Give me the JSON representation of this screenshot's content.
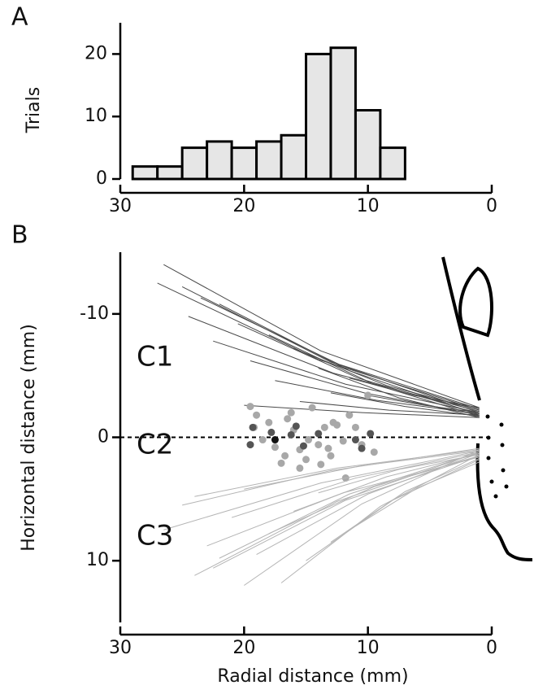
{
  "panel_labels": [
    "A",
    "B"
  ],
  "chart_data": [
    {
      "type": "histogram",
      "ylabel": "Trials",
      "bins": [
        29,
        27,
        25,
        23,
        21,
        19,
        17,
        15,
        13,
        11,
        9,
        7
      ],
      "counts": [
        2,
        2,
        5,
        6,
        5,
        6,
        7,
        20,
        21,
        11,
        5
      ],
      "color": "#e6e6e6",
      "xlim": [
        30,
        0
      ],
      "xticks": [
        30,
        20,
        10,
        0
      ],
      "ylim": [
        0,
        25
      ],
      "yticks": [
        0,
        10,
        20
      ]
    },
    {
      "type": "trajectory",
      "xlabel": "Radial distance (mm)",
      "ylabel": "Horizontal distance (mm)",
      "xlim": [
        30,
        0
      ],
      "xticks": [
        30,
        20,
        10,
        0
      ],
      "ylim": [
        -15,
        15
      ],
      "yticks": [
        -10,
        0,
        10
      ],
      "inverted_y": true,
      "hline": 0,
      "series": [
        {
          "name": "C1",
          "color": "#4a4a4a",
          "lines": [
            {
              "x": [
                26.5,
                13.8,
                1
              ],
              "y": [
                -14.0,
                -7.0,
                -2.4
              ]
            },
            {
              "x": [
                27.0,
                14.0,
                1
              ],
              "y": [
                -12.5,
                -6.3,
                -2.2
              ]
            },
            {
              "x": [
                25.0,
                13.0,
                1
              ],
              "y": [
                -12.2,
                -6.1,
                -2.0
              ]
            },
            {
              "x": [
                23.5,
                12.3,
                1
              ],
              "y": [
                -11.3,
                -5.9,
                -2.3
              ]
            },
            {
              "x": [
                22.0,
                11.5,
                1
              ],
              "y": [
                -10.8,
                -5.4,
                -1.8
              ]
            },
            {
              "x": [
                24.5,
                12.8,
                1
              ],
              "y": [
                -9.8,
                -5.2,
                -2.1
              ]
            },
            {
              "x": [
                20.5,
                10.8,
                1
              ],
              "y": [
                -9.2,
                -4.8,
                -1.9
              ]
            },
            {
              "x": [
                18.0,
                9.5,
                1
              ],
              "y": [
                -8.3,
                -4.3,
                -1.7
              ]
            },
            {
              "x": [
                22.5,
                11.8,
                1
              ],
              "y": [
                -7.8,
                -4.3,
                -2.0
              ]
            },
            {
              "x": [
                16.0,
                8.5,
                1
              ],
              "y": [
                -7.2,
                -4.2,
                -2.2
              ]
            },
            {
              "x": [
                19.5,
                10.3,
                1
              ],
              "y": [
                -6.2,
                -3.6,
                -1.8
              ]
            },
            {
              "x": [
                14.0,
                7.5,
                1
              ],
              "y": [
                -5.6,
                -3.2,
                -1.6
              ]
            },
            {
              "x": [
                17.5,
                9.3,
                1
              ],
              "y": [
                -4.6,
                -3.0,
                -1.9
              ]
            },
            {
              "x": [
                13.0,
                7.0,
                1
              ],
              "y": [
                -3.6,
                -2.5,
                -1.7
              ]
            },
            {
              "x": [
                20.0,
                10.5,
                1
              ],
              "y": [
                -2.6,
                -2.0,
                -1.6
              ]
            },
            {
              "x": [
                10.0,
                5.5,
                1
              ],
              "y": [
                -3.4,
                -2.6,
                -2.0
              ]
            },
            {
              "x": [
                15.5,
                8.3,
                1
              ],
              "y": [
                -2.9,
                -2.2,
                -1.8
              ]
            },
            {
              "x": [
                11.5,
                6.3,
                1
              ],
              "y": [
                -4.8,
                -3.4,
                -2.4
              ]
            }
          ]
        },
        {
          "name": "C2",
          "markers": [
            {
              "color": "#a8a8a8",
              "x": [
                19.5,
                19.0,
                18.0,
                17.5,
                16.5,
                16.0,
                15.5,
                15.0,
                14.5,
                14.0,
                13.5,
                13.0,
                12.5,
                12.0,
                11.5,
                11.0,
                10.5,
                10.0,
                9.5,
                17.0,
                15.5,
                13.8,
                16.2,
                12.8,
                18.5,
                14.8,
                19.2,
                11.8,
                16.7,
                13.2
              ],
              "y": [
                -2.5,
                -1.8,
                -1.2,
                0.8,
                -1.5,
                -0.6,
                1.0,
                1.8,
                -2.4,
                0.6,
                -0.8,
                1.5,
                -1.0,
                0.3,
                -1.8,
                -0.8,
                0.6,
                -3.4,
                1.2,
                2.1,
                2.5,
                2.2,
                -2.0,
                -1.2,
                0.2,
                0.2,
                -0.8,
                3.3,
                1.5,
                0.9
              ]
            },
            {
              "color": "#555555",
              "x": [
                19.5,
                19.3,
                17.8,
                16.2,
                15.8,
                14.0,
                11.0,
                9.8,
                10.5,
                15.2
              ],
              "y": [
                0.6,
                -0.8,
                -0.4,
                -0.2,
                -0.9,
                -0.3,
                0.2,
                -0.3,
                0.9,
                0.7
              ]
            },
            {
              "color": "#111111",
              "x": [
                17.5
              ],
              "y": [
                0.2
              ]
            }
          ]
        },
        {
          "name": "C3",
          "color": "#b4b4b4",
          "lines": [
            {
              "x": [
                24.0,
                12.5,
                1
              ],
              "y": [
                11.2,
                5.2,
                1.2
              ]
            },
            {
              "x": [
                22.5,
                11.8,
                1
              ],
              "y": [
                10.6,
                5.1,
                1.5
              ]
            },
            {
              "x": [
                20.0,
                10.5,
                1
              ],
              "y": [
                12.0,
                5.4,
                1.0
              ]
            },
            {
              "x": [
                17.0,
                9.0,
                1
              ],
              "y": [
                11.8,
                5.6,
                1.4
              ]
            },
            {
              "x": [
                26.5,
                13.8,
                1
              ],
              "y": [
                7.5,
                3.7,
                1.1
              ]
            },
            {
              "x": [
                23.0,
                12.0,
                1
              ],
              "y": [
                8.8,
                4.5,
                1.6
              ]
            },
            {
              "x": [
                19.0,
                10.0,
                1
              ],
              "y": [
                9.5,
                4.6,
                1.3
              ]
            },
            {
              "x": [
                15.0,
                8.0,
                1
              ],
              "y": [
                10.0,
                5.1,
                1.8
              ]
            },
            {
              "x": [
                25.0,
                13.0,
                1
              ],
              "y": [
                5.5,
                2.7,
                0.9
              ]
            },
            {
              "x": [
                21.0,
                11.0,
                1
              ],
              "y": [
                6.5,
                3.3,
                1.2
              ]
            },
            {
              "x": [
                18.0,
                9.5,
                1
              ],
              "y": [
                7.8,
                4.0,
                1.5
              ]
            },
            {
              "x": [
                13.0,
                7.0,
                1
              ],
              "y": [
                8.5,
                4.4,
                1.7
              ]
            },
            {
              "x": [
                24.0,
                12.5,
                1
              ],
              "y": [
                4.8,
                2.5,
                1.0
              ]
            },
            {
              "x": [
                16.0,
                8.5,
                1
              ],
              "y": [
                6.0,
                3.2,
                1.3
              ]
            },
            {
              "x": [
                11.0,
                6.0,
                1
              ],
              "y": [
                7.2,
                4.1,
                2.0
              ]
            },
            {
              "x": [
                20.0,
                10.5,
                1
              ],
              "y": [
                4.2,
                2.3,
                1.1
              ]
            },
            {
              "x": [
                14.0,
                7.5,
                1
              ],
              "y": [
                4.5,
                2.6,
                1.4
              ]
            },
            {
              "x": [
                22.0,
                11.5,
                1
              ],
              "y": [
                9.8,
                4.6,
                1.2
              ]
            }
          ]
        }
      ]
    }
  ]
}
